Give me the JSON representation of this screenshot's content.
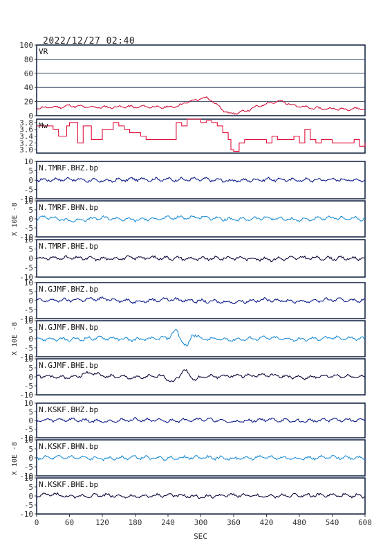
{
  "title": "2022/12/27 02:40",
  "x_axis": {
    "label": "SEC",
    "range": [
      0,
      600
    ],
    "ticks": [
      0,
      60,
      120,
      180,
      240,
      300,
      360,
      420,
      480,
      540,
      600
    ]
  },
  "side_label": "X 10E -8",
  "colors": {
    "vr": "#d0103a",
    "mw": "#e0103a",
    "dark_blue": "#0c1a8a",
    "light_blue": "#1f8fd6",
    "navy": "#0a0a3a",
    "frame": "#0a1a3a"
  },
  "chart_data": [
    {
      "type": "line",
      "panel": "vr",
      "label": "VR",
      "ylim": [
        0,
        100
      ],
      "yticks": [
        0,
        20,
        40,
        60,
        80,
        100
      ],
      "grid": true,
      "color": "#d0103a",
      "x": [
        0,
        20,
        40,
        60,
        80,
        100,
        120,
        140,
        160,
        180,
        200,
        220,
        240,
        260,
        270,
        280,
        290,
        300,
        310,
        320,
        330,
        340,
        350,
        360,
        380,
        400,
        420,
        440,
        450,
        460,
        480,
        500,
        520,
        540,
        560,
        580,
        600
      ],
      "values": [
        10,
        12,
        12,
        14,
        13,
        12,
        12,
        12,
        13,
        12,
        13,
        12,
        12,
        14,
        18,
        20,
        22,
        24,
        25,
        22,
        15,
        8,
        4,
        3,
        6,
        12,
        17,
        20,
        20,
        17,
        13,
        11,
        10,
        10,
        9,
        10,
        10
      ]
    },
    {
      "type": "line",
      "panel": "mw",
      "label": "Mw",
      "ylim": [
        2.9,
        3.9
      ],
      "yticks": [
        3.0,
        3.2,
        3.4,
        3.6,
        3.8
      ],
      "grid": false,
      "color": "#e0103a",
      "x": [
        0,
        10,
        30,
        40,
        55,
        60,
        75,
        85,
        100,
        110,
        120,
        130,
        140,
        150,
        160,
        170,
        180,
        190,
        200,
        220,
        240,
        255,
        265,
        275,
        290,
        300,
        310,
        320,
        330,
        340,
        350,
        355,
        360,
        370,
        380,
        400,
        420,
        430,
        440,
        460,
        470,
        480,
        490,
        500,
        510,
        520,
        530,
        540,
        560,
        580,
        590,
        600
      ],
      "values": [
        3.7,
        3.7,
        3.6,
        3.4,
        3.7,
        3.8,
        3.2,
        3.7,
        3.3,
        3.3,
        3.6,
        3.6,
        3.8,
        3.7,
        3.6,
        3.5,
        3.5,
        3.4,
        3.3,
        3.3,
        3.3,
        3.8,
        3.7,
        3.9,
        3.9,
        3.8,
        3.85,
        3.8,
        3.7,
        3.5,
        3.3,
        3.0,
        2.95,
        3.2,
        3.3,
        3.3,
        3.2,
        3.4,
        3.3,
        3.3,
        3.4,
        3.2,
        3.6,
        3.3,
        3.2,
        3.3,
        3.3,
        3.2,
        3.2,
        3.3,
        3.1,
        3.2
      ]
    },
    {
      "type": "line",
      "panel": "seis",
      "label": "N.TMRF.BHZ.bp",
      "ylim": [
        -10,
        10
      ],
      "yticks": [
        -10,
        -5,
        0,
        5,
        10
      ],
      "color": "#0c1a8a",
      "x": [
        0,
        60,
        120,
        180,
        240,
        300,
        360,
        420,
        480,
        540,
        600
      ],
      "values": [
        0,
        0.5,
        -0.5,
        0.5,
        0.3,
        0.4,
        -0.4,
        0.4,
        0,
        0.3,
        0
      ]
    },
    {
      "type": "line",
      "panel": "seis",
      "label": "N.TMRF.BHN.bp",
      "ylim": [
        -10,
        10
      ],
      "yticks": [
        -10,
        -5,
        0,
        5,
        10
      ],
      "color": "#1f8fd6",
      "x": [
        0,
        15,
        30,
        60,
        120,
        180,
        240,
        300,
        360,
        420,
        480,
        540,
        600
      ],
      "values": [
        -0.5,
        1.5,
        0.5,
        -1,
        0.5,
        -0.5,
        0.5,
        1,
        -0.5,
        0.5,
        -0.5,
        0.5,
        0
      ]
    },
    {
      "type": "line",
      "panel": "seis",
      "label": "N.TMRF.BHE.bp",
      "ylim": [
        -10,
        10
      ],
      "yticks": [
        -10,
        -5,
        0,
        5,
        10
      ],
      "color": "#0a0a3a",
      "x": [
        0,
        60,
        120,
        180,
        240,
        300,
        360,
        420,
        480,
        540,
        600
      ],
      "values": [
        0,
        0.3,
        -0.3,
        0.4,
        0.2,
        -0.3,
        0.3,
        -0.5,
        0.3,
        0,
        0
      ]
    },
    {
      "type": "line",
      "panel": "seis",
      "label": "N.GJMF.BHZ.bp",
      "ylim": [
        -10,
        10
      ],
      "yticks": [
        -10,
        -5,
        0,
        5,
        10
      ],
      "color": "#0c1a8a",
      "x": [
        0,
        60,
        120,
        180,
        240,
        300,
        360,
        420,
        480,
        540,
        600
      ],
      "values": [
        0,
        0.3,
        1,
        -0.5,
        0.8,
        -0.3,
        -0.8,
        0.5,
        -0.5,
        0.5,
        0
      ]
    },
    {
      "type": "line",
      "panel": "seis",
      "label": "N.GJMF.BHN.bp",
      "ylim": [
        -10,
        10
      ],
      "yticks": [
        -10,
        -5,
        0,
        5,
        10
      ],
      "color": "#1f8fd6",
      "x": [
        0,
        60,
        120,
        180,
        240,
        255,
        265,
        275,
        285,
        300,
        360,
        420,
        480,
        540,
        600
      ],
      "values": [
        0,
        -0.5,
        0.5,
        -0.5,
        0.5,
        5,
        -1,
        -5,
        3,
        0,
        -0.5,
        0.5,
        -0.5,
        0.5,
        0
      ]
    },
    {
      "type": "line",
      "panel": "seis",
      "label": "N.GJMF.BHE.bp",
      "ylim": [
        -10,
        10
      ],
      "yticks": [
        -10,
        -5,
        0,
        5,
        10
      ],
      "color": "#0a0a3a",
      "x": [
        0,
        60,
        100,
        120,
        180,
        230,
        250,
        270,
        290,
        300,
        360,
        420,
        480,
        540,
        600
      ],
      "values": [
        0.5,
        -0.5,
        2.5,
        0.5,
        -0.5,
        0.5,
        -3,
        4,
        -2,
        0,
        0.5,
        1,
        -0.5,
        0.5,
        0
      ]
    },
    {
      "type": "line",
      "panel": "seis",
      "label": "N.KSKF.BHZ.bp",
      "ylim": [
        -10,
        10
      ],
      "yticks": [
        -10,
        -5,
        0,
        5,
        10
      ],
      "color": "#0c1a8a",
      "x": [
        0,
        60,
        120,
        180,
        240,
        300,
        360,
        420,
        480,
        540,
        600
      ],
      "values": [
        0,
        0.5,
        -0.5,
        0.5,
        -0.3,
        0.8,
        -0.8,
        0.5,
        -0.5,
        0.5,
        0
      ]
    },
    {
      "type": "line",
      "panel": "seis",
      "label": "N.KSKF.BHN.bp",
      "ylim": [
        -10,
        10
      ],
      "yticks": [
        -10,
        -5,
        0,
        5,
        10
      ],
      "color": "#1f8fd6",
      "x": [
        0,
        60,
        120,
        180,
        240,
        300,
        360,
        420,
        480,
        540,
        600
      ],
      "values": [
        0,
        0.3,
        -0.5,
        0.3,
        -0.3,
        0.3,
        -0.3,
        0.3,
        -0.3,
        0.3,
        0
      ]
    },
    {
      "type": "line",
      "panel": "seis",
      "label": "N.KSKF.BHE.bp",
      "ylim": [
        -10,
        10
      ],
      "yticks": [
        -10,
        -5,
        0,
        5,
        10
      ],
      "color": "#0a0a3a",
      "x": [
        0,
        30,
        60,
        120,
        180,
        240,
        300,
        360,
        420,
        480,
        540,
        600
      ],
      "values": [
        0,
        1,
        -0.5,
        0.5,
        -0.5,
        0.5,
        -0.5,
        0.5,
        -0.3,
        0.5,
        0.3,
        0
      ]
    }
  ]
}
